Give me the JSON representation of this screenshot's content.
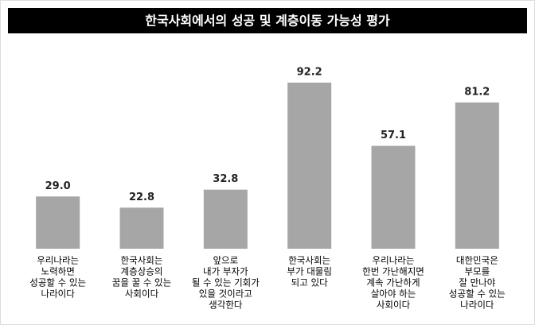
{
  "chart_data": {
    "type": "bar",
    "title": "한국사회에서의 성공 및 계층이동 가능성 평가",
    "categories": [
      [
        "우리나라는",
        "노력하면",
        "성공할 수 있는",
        "나라이다"
      ],
      [
        "한국사회는",
        "계층상승의",
        "꿈을 꿀 수 있는",
        "사회이다"
      ],
      [
        "앞으로",
        "내가 부자가",
        "될 수 있는 기회가",
        "있을 것이라고",
        "생각한다"
      ],
      [
        "한국사회는",
        "부가 대물림",
        "되고 있다"
      ],
      [
        "우리나라는",
        "한번 가난해지면",
        "계속 가난하게",
        "살아야 하는",
        "사회이다"
      ],
      [
        "대한민국은",
        "부모를",
        "잘 만나야",
        "성공할 수 있는",
        "나라이다"
      ]
    ],
    "values": [
      29.0,
      22.8,
      32.8,
      92.2,
      57.1,
      81.2
    ],
    "value_labels": [
      "29.0",
      "22.8",
      "32.8",
      "92.2",
      "57.1",
      "81.2"
    ],
    "color": "#a6a6a6"
  }
}
